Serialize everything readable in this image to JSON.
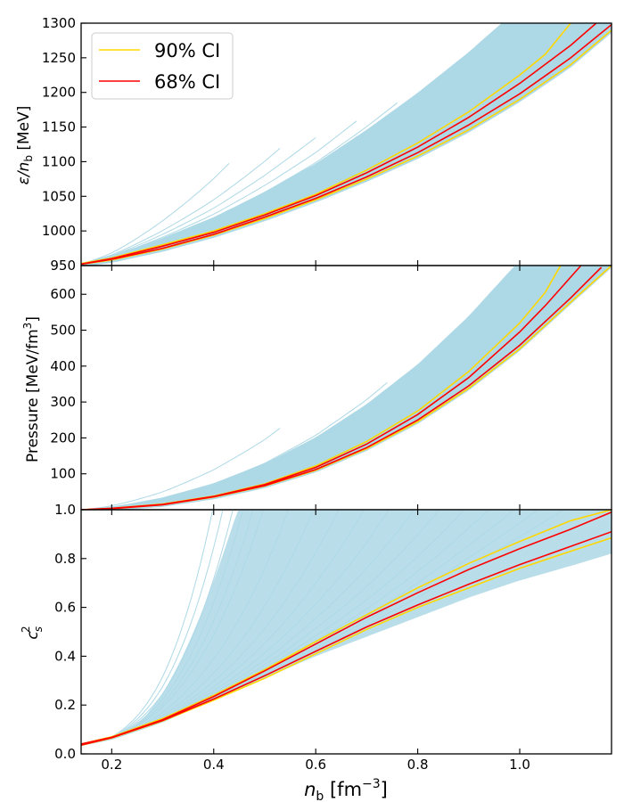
{
  "chart_data": [
    {
      "type": "line",
      "panel": "top",
      "ylabel_symbol": "ε/n",
      "ylabel_sub": "b",
      "ylabel_unit": " [MeV]",
      "ylim": [
        950,
        1300
      ],
      "xlim": [
        0.14,
        1.18
      ],
      "yticks": [
        950,
        1000,
        1050,
        1100,
        1150,
        1200,
        1250,
        1300
      ],
      "band": {
        "name": "posterior samples",
        "color": "#add8e6",
        "start": 0.14,
        "start_value": 952,
        "max_x": [
          0.43,
          0.53,
          0.6,
          0.68,
          0.76,
          0.84,
          0.88,
          0.95,
          1.02,
          1.08,
          1.13
        ]
      },
      "series": [
        {
          "name": "90% CI upper",
          "color": "#ffd700",
          "x": [
            0.14,
            0.2,
            0.3,
            0.4,
            0.5,
            0.6,
            0.7,
            0.8,
            0.9,
            1.0,
            1.05,
            1.1
          ],
          "values": [
            953,
            961,
            980,
            1000,
            1025,
            1053,
            1088,
            1127,
            1172,
            1225,
            1255,
            1300
          ]
        },
        {
          "name": "90% CI lower",
          "color": "#ffd700",
          "x": [
            0.14,
            0.2,
            0.3,
            0.4,
            0.5,
            0.6,
            0.7,
            0.8,
            0.9,
            1.0,
            1.1,
            1.18
          ],
          "values": [
            952,
            958,
            974,
            994,
            1018,
            1045,
            1075,
            1108,
            1146,
            1190,
            1240,
            1290
          ]
        },
        {
          "name": "68% CI upper",
          "color": "#ff0000",
          "x": [
            0.14,
            0.2,
            0.3,
            0.4,
            0.5,
            0.6,
            0.7,
            0.8,
            0.9,
            1.0,
            1.1,
            1.15
          ],
          "values": [
            952,
            960,
            978,
            998,
            1023,
            1051,
            1084,
            1121,
            1164,
            1213,
            1268,
            1300
          ]
        },
        {
          "name": "68% CI lower",
          "color": "#ff0000",
          "x": [
            0.14,
            0.2,
            0.3,
            0.4,
            0.5,
            0.6,
            0.7,
            0.8,
            0.9,
            1.0,
            1.1,
            1.18
          ],
          "values": [
            952,
            959,
            975,
            995,
            1020,
            1047,
            1078,
            1113,
            1153,
            1198,
            1250,
            1298
          ]
        }
      ],
      "legend": [
        {
          "label": "90% CI",
          "color": "#ffd700"
        },
        {
          "label": "68% CI",
          "color": "#ff0000"
        }
      ],
      "legend_position": "top-left"
    },
    {
      "type": "line",
      "panel": "middle",
      "ylabel_main": "Pressure [MeV/fm",
      "ylabel_sup": "3",
      "ylabel_end": "]",
      "ylim": [
        0,
        680
      ],
      "xlim": [
        0.14,
        1.18
      ],
      "yticks": [
        100,
        200,
        300,
        400,
        500,
        600
      ],
      "band": {
        "name": "posterior samples",
        "color": "#add8e6",
        "start": 0.14,
        "start_value": 0,
        "max_x": [
          0.53,
          0.74,
          0.88,
          0.95,
          1.02,
          1.08,
          1.12
        ]
      },
      "series": [
        {
          "name": "90% CI upper",
          "color": "#ffd700",
          "x": [
            0.14,
            0.2,
            0.3,
            0.4,
            0.5,
            0.6,
            0.7,
            0.8,
            0.9,
            1.0,
            1.05,
            1.08
          ],
          "values": [
            0,
            4,
            16,
            38,
            72,
            122,
            190,
            275,
            385,
            520,
            605,
            680
          ]
        },
        {
          "name": "90% CI lower",
          "color": "#ffd700",
          "x": [
            0.14,
            0.2,
            0.3,
            0.4,
            0.5,
            0.6,
            0.7,
            0.8,
            0.9,
            1.0,
            1.1,
            1.18
          ],
          "values": [
            0,
            3,
            14,
            35,
            66,
            110,
            170,
            245,
            338,
            448,
            578,
            680
          ]
        },
        {
          "name": "68% CI upper",
          "color": "#ff0000",
          "x": [
            0.14,
            0.2,
            0.3,
            0.4,
            0.5,
            0.6,
            0.7,
            0.8,
            0.9,
            1.0,
            1.05,
            1.12
          ],
          "values": [
            0,
            4,
            15,
            37,
            70,
            118,
            183,
            265,
            368,
            495,
            568,
            680
          ]
        },
        {
          "name": "68% CI lower",
          "color": "#ff0000",
          "x": [
            0.14,
            0.2,
            0.3,
            0.4,
            0.5,
            0.6,
            0.7,
            0.8,
            0.9,
            1.0,
            1.1,
            1.16
          ],
          "values": [
            0,
            3,
            14,
            36,
            67,
            112,
            173,
            250,
            345,
            458,
            590,
            675
          ]
        }
      ]
    },
    {
      "type": "line",
      "panel": "bottom",
      "ylabel_main": "c",
      "ylabel_sub": "s",
      "ylabel_sup": "2",
      "xlabel_main": "n",
      "xlabel_sub": "b",
      "xlabel_unit": " [fm",
      "xlabel_sup": "−3",
      "xlabel_end": "]",
      "ylim": [
        0,
        1.0
      ],
      "xlim": [
        0.14,
        1.18
      ],
      "xticks": [
        0.2,
        0.4,
        0.6,
        0.8,
        1.0
      ],
      "xtick_labels": [
        "0.2",
        "0.4",
        "0.6",
        "0.8",
        "1.0"
      ],
      "yticks": [
        0.0,
        0.2,
        0.4,
        0.6,
        0.8,
        1.0
      ],
      "ytick_labels": [
        "0.0",
        "0.2",
        "0.4",
        "0.6",
        "0.8",
        "1.0"
      ],
      "band": {
        "name": "posterior samples",
        "color": "#add8e6",
        "start": 0.14,
        "start_value": 0.04,
        "lower_x": [
          0.14,
          0.2,
          0.3,
          0.4,
          0.5,
          0.6,
          0.7,
          0.8,
          0.9,
          1.0,
          1.1,
          1.18
        ],
        "lower_values": [
          0.035,
          0.06,
          0.13,
          0.22,
          0.31,
          0.4,
          0.48,
          0.56,
          0.64,
          0.71,
          0.77,
          0.82
        ],
        "steep_x": [
          0.4,
          0.42,
          0.44,
          0.46,
          0.48,
          0.5,
          0.55,
          0.6,
          0.65,
          0.7,
          0.75,
          0.8,
          0.85,
          0.9,
          0.95,
          1.0,
          1.05,
          1.1
        ]
      },
      "series": [
        {
          "name": "90% CI upper",
          "color": "#ffd700",
          "x": [
            0.14,
            0.2,
            0.3,
            0.4,
            0.5,
            0.6,
            0.7,
            0.8,
            0.9,
            1.0,
            1.1,
            1.18
          ],
          "values": [
            0.04,
            0.07,
            0.145,
            0.24,
            0.345,
            0.46,
            0.57,
            0.68,
            0.78,
            0.87,
            0.955,
            1.0
          ]
        },
        {
          "name": "90% CI lower",
          "color": "#ffd700",
          "x": [
            0.14,
            0.2,
            0.3,
            0.4,
            0.5,
            0.6,
            0.7,
            0.8,
            0.9,
            1.0,
            1.1,
            1.18
          ],
          "values": [
            0.035,
            0.065,
            0.135,
            0.22,
            0.31,
            0.41,
            0.51,
            0.6,
            0.68,
            0.76,
            0.83,
            0.885
          ]
        },
        {
          "name": "68% CI upper",
          "color": "#ff0000",
          "x": [
            0.14,
            0.2,
            0.3,
            0.4,
            0.5,
            0.6,
            0.7,
            0.8,
            0.9,
            1.0,
            1.1,
            1.18
          ],
          "values": [
            0.04,
            0.068,
            0.14,
            0.235,
            0.34,
            0.45,
            0.56,
            0.66,
            0.755,
            0.84,
            0.92,
            0.99
          ]
        },
        {
          "name": "68% CI lower",
          "color": "#ff0000",
          "x": [
            0.14,
            0.2,
            0.3,
            0.4,
            0.5,
            0.6,
            0.7,
            0.8,
            0.9,
            1.0,
            1.1,
            1.18
          ],
          "values": [
            0.036,
            0.066,
            0.137,
            0.225,
            0.32,
            0.42,
            0.52,
            0.61,
            0.695,
            0.775,
            0.85,
            0.91
          ]
        }
      ]
    }
  ]
}
